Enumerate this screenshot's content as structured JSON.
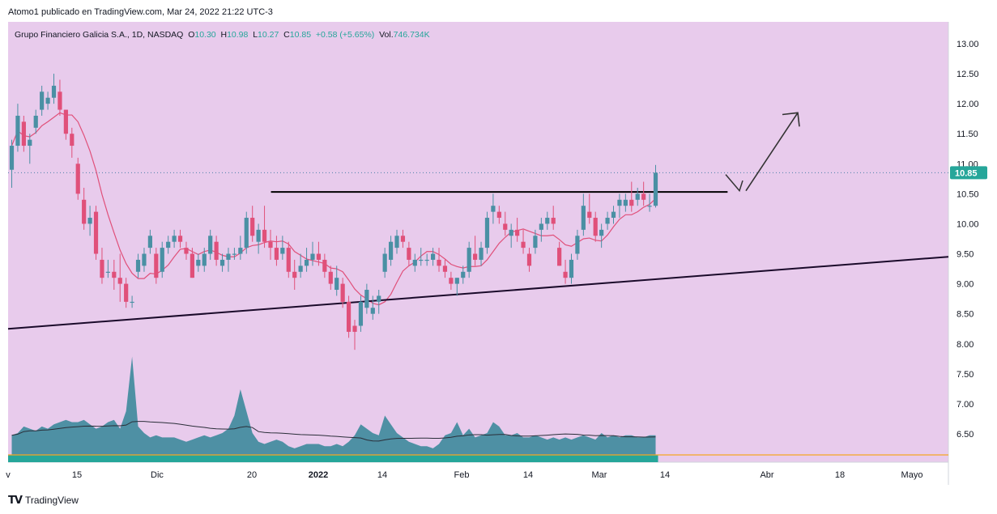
{
  "header": {
    "published": "Atomo1 publicado en TradingView.com, Mar 24, 2022 21:22 UTC-3"
  },
  "legend": {
    "symbol": "Grupo Financiero Galicia S.A., 1D, NASDAQ",
    "o_label": "O",
    "o_value": "10.30",
    "h_label": "H",
    "h_value": "10.98",
    "l_label": "L",
    "l_value": "10.27",
    "c_label": "C",
    "c_value": "10.85",
    "change": "+0.58 (+5.65%)",
    "vol_label": "Vol.",
    "vol_value": "746.734K"
  },
  "footer": {
    "brand": "TradingView"
  },
  "colors": {
    "background": "#e8cbec",
    "up": "#4a90a4",
    "down": "#e0507a",
    "ma": "#e0507a",
    "last_price": "#26a69a",
    "volume": "#3d8a9c"
  },
  "chart_data": {
    "type": "candlestick",
    "ylim": [
      6.1,
      13.2
    ],
    "yticks": [
      "13.00",
      "12.50",
      "12.00",
      "11.50",
      "11.00",
      "10.50",
      "10.00",
      "9.50",
      "9.00",
      "8.50",
      "8.00",
      "7.50",
      "7.00",
      "6.50"
    ],
    "xticks": [
      "v",
      "15",
      "Dic",
      "20",
      "2022",
      "14",
      "Feb",
      "14",
      "Mar",
      "14",
      "Abr",
      "18",
      "Mayo"
    ],
    "last_price": "10.85",
    "candles": [
      [
        10.9,
        11.4,
        10.6,
        11.3
      ],
      [
        11.3,
        12.0,
        11.2,
        11.8
      ],
      [
        11.7,
        11.8,
        11.2,
        11.3
      ],
      [
        11.3,
        11.5,
        11.0,
        11.4
      ],
      [
        11.6,
        11.9,
        11.5,
        11.8
      ],
      [
        11.9,
        12.3,
        11.8,
        12.2
      ],
      [
        12.0,
        12.2,
        11.9,
        12.1
      ],
      [
        12.1,
        12.5,
        12.0,
        12.3
      ],
      [
        12.2,
        12.4,
        11.8,
        11.9
      ],
      [
        11.9,
        11.9,
        11.4,
        11.5
      ],
      [
        11.5,
        11.6,
        11.1,
        11.3
      ],
      [
        11.0,
        11.1,
        10.4,
        10.5
      ],
      [
        10.4,
        10.6,
        9.9,
        10.0
      ],
      [
        10.0,
        10.3,
        9.8,
        10.1
      ],
      [
        10.2,
        10.3,
        9.4,
        9.5
      ],
      [
        9.4,
        9.6,
        9.0,
        9.1
      ],
      [
        9.2,
        9.4,
        9.1,
        9.2
      ],
      [
        9.2,
        9.4,
        8.9,
        9.1
      ],
      [
        9.1,
        9.5,
        8.7,
        9.0
      ],
      [
        9.0,
        9.1,
        8.6,
        8.7
      ],
      [
        8.7,
        8.8,
        8.6,
        8.7
      ],
      [
        9.2,
        9.5,
        9.1,
        9.4
      ],
      [
        9.3,
        9.6,
        9.2,
        9.5
      ],
      [
        9.6,
        9.9,
        9.5,
        9.8
      ],
      [
        9.5,
        9.6,
        9.0,
        9.1
      ],
      [
        9.2,
        9.7,
        9.1,
        9.6
      ],
      [
        9.6,
        9.8,
        9.5,
        9.7
      ],
      [
        9.7,
        9.9,
        9.6,
        9.8
      ],
      [
        9.8,
        9.9,
        9.6,
        9.7
      ],
      [
        9.6,
        9.7,
        9.4,
        9.5
      ],
      [
        9.5,
        9.6,
        9.1,
        9.1
      ],
      [
        9.3,
        9.5,
        9.2,
        9.4
      ],
      [
        9.3,
        9.6,
        9.2,
        9.5
      ],
      [
        9.5,
        9.9,
        9.4,
        9.8
      ],
      [
        9.7,
        9.8,
        9.3,
        9.4
      ],
      [
        9.3,
        9.5,
        9.2,
        9.4
      ],
      [
        9.4,
        9.6,
        9.2,
        9.5
      ],
      [
        9.5,
        9.6,
        9.4,
        9.5
      ],
      [
        9.5,
        9.8,
        9.4,
        9.6
      ],
      [
        9.6,
        10.2,
        9.5,
        10.1
      ],
      [
        10.1,
        10.3,
        9.7,
        9.8
      ],
      [
        9.7,
        10.0,
        9.5,
        9.9
      ],
      [
        9.9,
        10.3,
        9.6,
        9.7
      ],
      [
        9.7,
        9.9,
        9.4,
        9.6
      ],
      [
        9.6,
        9.8,
        9.3,
        9.4
      ],
      [
        9.5,
        9.8,
        9.4,
        9.6
      ],
      [
        9.6,
        9.7,
        9.1,
        9.2
      ],
      [
        9.2,
        9.4,
        8.9,
        9.1
      ],
      [
        9.2,
        9.5,
        9.1,
        9.3
      ],
      [
        9.3,
        9.6,
        9.2,
        9.4
      ],
      [
        9.4,
        9.7,
        9.3,
        9.5
      ],
      [
        9.5,
        9.7,
        9.3,
        9.4
      ],
      [
        9.4,
        9.5,
        9.1,
        9.2
      ],
      [
        9.2,
        9.3,
        8.9,
        9.0
      ],
      [
        8.9,
        9.3,
        8.8,
        9.1
      ],
      [
        9.0,
        9.1,
        8.6,
        8.7
      ],
      [
        8.7,
        8.8,
        8.1,
        8.2
      ],
      [
        8.3,
        8.4,
        7.9,
        8.2
      ],
      [
        8.3,
        8.8,
        8.2,
        8.7
      ],
      [
        8.6,
        9.0,
        8.5,
        8.9
      ],
      [
        8.5,
        8.8,
        8.4,
        8.6
      ],
      [
        8.7,
        8.9,
        8.5,
        8.8
      ],
      [
        9.2,
        9.6,
        9.1,
        9.5
      ],
      [
        9.4,
        9.8,
        9.3,
        9.7
      ],
      [
        9.6,
        9.9,
        9.5,
        9.8
      ],
      [
        9.8,
        9.9,
        9.6,
        9.7
      ],
      [
        9.6,
        9.7,
        9.3,
        9.4
      ],
      [
        9.3,
        9.5,
        9.2,
        9.4
      ],
      [
        9.4,
        9.6,
        9.3,
        9.4
      ],
      [
        9.4,
        9.5,
        9.3,
        9.4
      ],
      [
        9.4,
        9.6,
        9.3,
        9.5
      ],
      [
        9.4,
        9.6,
        9.2,
        9.3
      ],
      [
        9.3,
        9.4,
        9.1,
        9.2
      ],
      [
        9.1,
        9.2,
        8.9,
        9.0
      ],
      [
        9.0,
        9.1,
        8.8,
        9.1
      ],
      [
        9.1,
        9.3,
        9.0,
        9.2
      ],
      [
        9.2,
        9.7,
        9.1,
        9.6
      ],
      [
        9.5,
        9.8,
        9.3,
        9.4
      ],
      [
        9.4,
        9.7,
        9.3,
        9.6
      ],
      [
        9.6,
        10.2,
        9.5,
        10.1
      ],
      [
        10.2,
        10.5,
        10.0,
        10.3
      ],
      [
        10.2,
        10.3,
        10.0,
        10.1
      ],
      [
        10.0,
        10.2,
        9.8,
        9.9
      ],
      [
        9.8,
        10.0,
        9.6,
        9.9
      ],
      [
        9.9,
        10.1,
        9.7,
        9.8
      ],
      [
        9.7,
        9.9,
        9.5,
        9.6
      ],
      [
        9.5,
        9.6,
        9.2,
        9.3
      ],
      [
        9.6,
        9.9,
        9.5,
        9.8
      ],
      [
        9.9,
        10.1,
        9.7,
        10.0
      ],
      [
        10.0,
        10.2,
        9.9,
        10.1
      ],
      [
        10.1,
        10.3,
        9.9,
        10.0
      ],
      [
        9.6,
        9.7,
        9.3,
        9.3
      ],
      [
        9.2,
        9.4,
        9.0,
        9.1
      ],
      [
        9.1,
        9.5,
        9.0,
        9.4
      ],
      [
        9.5,
        9.9,
        9.4,
        9.8
      ],
      [
        9.9,
        10.5,
        9.8,
        10.3
      ],
      [
        10.2,
        10.5,
        10.0,
        10.1
      ],
      [
        10.1,
        10.2,
        9.7,
        9.8
      ],
      [
        9.8,
        10.0,
        9.6,
        9.9
      ],
      [
        10.0,
        10.2,
        9.9,
        10.1
      ],
      [
        10.1,
        10.3,
        10.0,
        10.2
      ],
      [
        10.3,
        10.5,
        10.1,
        10.4
      ],
      [
        10.3,
        10.5,
        10.2,
        10.4
      ],
      [
        10.4,
        10.7,
        10.2,
        10.3
      ],
      [
        10.4,
        10.6,
        10.3,
        10.5
      ],
      [
        10.5,
        10.7,
        10.3,
        10.4
      ],
      [
        10.3,
        10.5,
        10.2,
        10.3
      ],
      [
        10.3,
        10.98,
        10.27,
        10.85
      ]
    ],
    "volume": [
      0.9,
      1.0,
      1.3,
      1.2,
      1.1,
      1.3,
      1.2,
      1.4,
      1.5,
      1.6,
      1.5,
      1.5,
      1.6,
      1.4,
      1.2,
      1.3,
      1.5,
      1.6,
      1.2,
      2.0,
      4.5,
      1.3,
      1.0,
      0.8,
      0.9,
      0.8,
      0.8,
      0.8,
      0.7,
      0.6,
      0.7,
      0.8,
      0.9,
      0.8,
      0.9,
      1.0,
      1.2,
      1.8,
      3.0,
      2.0,
      1.0,
      0.6,
      0.5,
      0.6,
      0.7,
      0.6,
      0.4,
      0.3,
      0.4,
      0.5,
      0.5,
      0.5,
      0.4,
      0.4,
      0.5,
      0.4,
      0.6,
      0.9,
      1.4,
      1.2,
      1.0,
      0.9,
      1.8,
      1.4,
      1.0,
      0.8,
      0.6,
      0.5,
      0.4,
      0.4,
      0.3,
      0.5,
      0.9,
      1.0,
      1.5,
      0.9,
      1.2,
      0.8,
      0.9,
      1.0,
      1.5,
      1.3,
      0.9,
      0.9,
      1.0,
      0.8,
      0.8,
      0.9,
      0.8,
      0.7,
      0.8,
      0.7,
      0.8,
      0.7,
      0.8,
      0.9,
      0.8,
      0.7,
      1.0,
      0.8,
      0.9,
      0.8,
      0.9,
      0.9,
      0.8,
      0.8,
      0.9,
      0.9
    ],
    "resistance": {
      "from_index": 42,
      "to_index": 116,
      "price": 10.53
    },
    "support": {
      "x0_index": -2,
      "y0": 8.25,
      "x1_index": 152,
      "y1": 9.45
    },
    "arrow": {
      "x0_index": 115,
      "y0": 10.55,
      "x1_index": 126,
      "y1": 11.85
    }
  }
}
